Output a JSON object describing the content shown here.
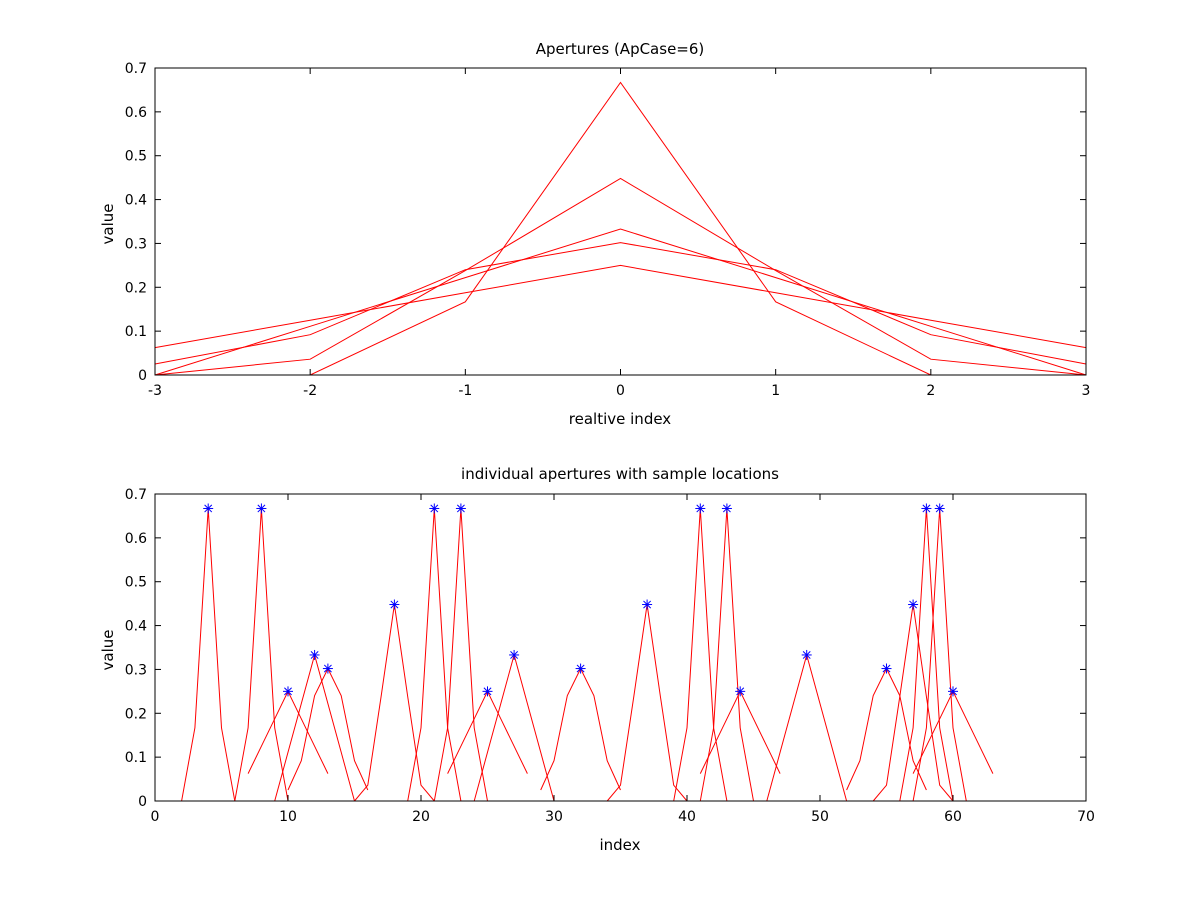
{
  "colors": {
    "aperture": "#ff0000",
    "sample_marker": "#0000ff",
    "axes": "#000000",
    "background": "#ffffff"
  },
  "chart_data": [
    {
      "type": "line",
      "title": "Apertures (ApCase=6)",
      "xlabel": "realtive index",
      "ylabel": "value",
      "xlim": [
        -3,
        3
      ],
      "ylim": [
        0,
        0.7
      ],
      "xticks": [
        -3,
        -2,
        -1,
        0,
        1,
        2,
        3
      ],
      "xticklabels": [
        "-3",
        "-2",
        "-1",
        "0",
        "1",
        "2",
        "3"
      ],
      "yticks": [
        0,
        0.1,
        0.2,
        0.3,
        0.4,
        0.5,
        0.6,
        0.7
      ],
      "yticklabels": [
        "0",
        "0.1",
        "0.2",
        "0.3",
        "0.4",
        "0.5",
        "0.6",
        "0.7"
      ],
      "grid": false,
      "series": [
        {
          "points": [
            [
              -3,
              0
            ],
            [
              -2,
              0
            ],
            [
              -1,
              0.167
            ],
            [
              0,
              0.667
            ],
            [
              1,
              0.167
            ],
            [
              2,
              0
            ],
            [
              3,
              0
            ]
          ]
        },
        {
          "points": [
            [
              -3,
              0
            ],
            [
              -2,
              0.036
            ],
            [
              -1,
              0.238
            ],
            [
              0,
              0.448
            ],
            [
              1,
              0.238
            ],
            [
              2,
              0.036
            ],
            [
              3,
              0
            ]
          ]
        },
        {
          "points": [
            [
              -3,
              0
            ],
            [
              -2,
              0.111
            ],
            [
              -1,
              0.222
            ],
            [
              0,
              0.333
            ],
            [
              1,
              0.222
            ],
            [
              2,
              0.111
            ],
            [
              3,
              0
            ]
          ]
        },
        {
          "points": [
            [
              -3,
              0.025
            ],
            [
              -2,
              0.092
            ],
            [
              -1,
              0.24
            ],
            [
              0,
              0.302
            ],
            [
              1,
              0.24
            ],
            [
              2,
              0.092
            ],
            [
              3,
              0.025
            ]
          ]
        },
        {
          "points": [
            [
              -3,
              0.0625
            ],
            [
              -2,
              0.125
            ],
            [
              -1,
              0.1875
            ],
            [
              0,
              0.25
            ],
            [
              1,
              0.1875
            ],
            [
              2,
              0.125
            ],
            [
              3,
              0.0625
            ]
          ]
        }
      ]
    },
    {
      "type": "line",
      "title": "individual apertures with sample locations",
      "xlabel": "index",
      "ylabel": "value",
      "xlim": [
        0,
        70
      ],
      "ylim": [
        0,
        0.7
      ],
      "xticks": [
        0,
        10,
        20,
        30,
        40,
        50,
        60,
        70
      ],
      "xticklabels": [
        "0",
        "10",
        "20",
        "30",
        "40",
        "50",
        "60",
        "70"
      ],
      "yticks": [
        0,
        0.1,
        0.2,
        0.3,
        0.4,
        0.5,
        0.6,
        0.7
      ],
      "yticklabels": [
        "0",
        "0.1",
        "0.2",
        "0.3",
        "0.4",
        "0.5",
        "0.6",
        "0.7"
      ],
      "grid": false,
      "aperture_shapes": {
        "A": [
          0,
          0,
          0.167,
          0.667,
          0.167,
          0,
          0
        ],
        "B": [
          0,
          0.036,
          0.238,
          0.448,
          0.238,
          0.036,
          0
        ],
        "C": [
          0,
          0.111,
          0.222,
          0.333,
          0.222,
          0.111,
          0
        ],
        "D": [
          0.025,
          0.092,
          0.24,
          0.302,
          0.24,
          0.092,
          0.025
        ],
        "E": [
          0.0625,
          0.125,
          0.1875,
          0.25,
          0.1875,
          0.125,
          0.0625
        ]
      },
      "apertures": [
        {
          "center": 4,
          "shape": "A"
        },
        {
          "center": 8,
          "shape": "A"
        },
        {
          "center": 10,
          "shape": "E"
        },
        {
          "center": 12,
          "shape": "C"
        },
        {
          "center": 13,
          "shape": "D"
        },
        {
          "center": 18,
          "shape": "B"
        },
        {
          "center": 21,
          "shape": "A"
        },
        {
          "center": 23,
          "shape": "A"
        },
        {
          "center": 25,
          "shape": "E"
        },
        {
          "center": 27,
          "shape": "C"
        },
        {
          "center": 32,
          "shape": "D"
        },
        {
          "center": 37,
          "shape": "B"
        },
        {
          "center": 41,
          "shape": "A"
        },
        {
          "center": 43,
          "shape": "A"
        },
        {
          "center": 44,
          "shape": "E"
        },
        {
          "center": 49,
          "shape": "C"
        },
        {
          "center": 55,
          "shape": "D"
        },
        {
          "center": 57,
          "shape": "B"
        },
        {
          "center": 58,
          "shape": "A"
        },
        {
          "center": 59,
          "shape": "A"
        },
        {
          "center": 60,
          "shape": "E"
        }
      ],
      "sample_markers": [
        [
          4,
          0.667
        ],
        [
          8,
          0.667
        ],
        [
          10,
          0.25
        ],
        [
          12,
          0.333
        ],
        [
          13,
          0.302
        ],
        [
          18,
          0.448
        ],
        [
          21,
          0.667
        ],
        [
          23,
          0.667
        ],
        [
          25,
          0.25
        ],
        [
          27,
          0.333
        ],
        [
          32,
          0.302
        ],
        [
          37,
          0.448
        ],
        [
          41,
          0.667
        ],
        [
          43,
          0.667
        ],
        [
          44,
          0.25
        ],
        [
          49,
          0.333
        ],
        [
          55,
          0.302
        ],
        [
          57,
          0.448
        ],
        [
          58,
          0.667
        ],
        [
          59,
          0.667
        ],
        [
          60,
          0.25
        ]
      ]
    }
  ]
}
